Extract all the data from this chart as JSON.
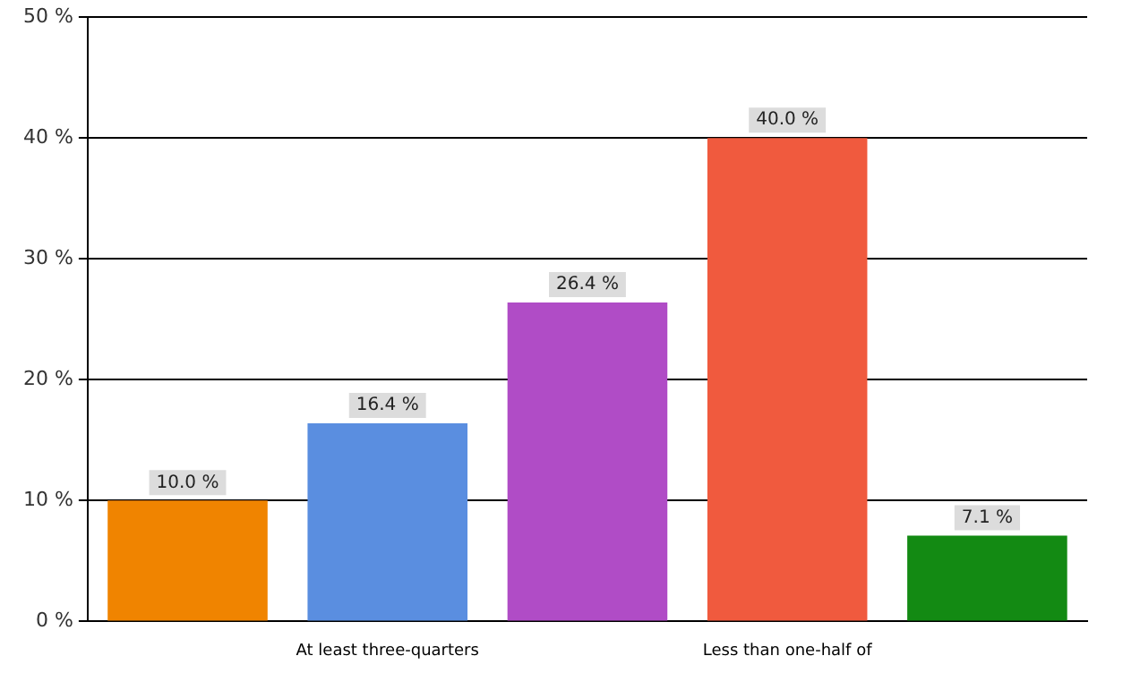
{
  "chart_data": {
    "type": "bar",
    "categories": [
      null,
      "At least three-quarters",
      null,
      "Less than one-half of",
      null
    ],
    "values": [
      10.0,
      16.4,
      26.4,
      40.0,
      7.1
    ],
    "colors": [
      "#f08400",
      "#5a8ee0",
      "#b04cc6",
      "#f05a3e",
      "#138a13"
    ],
    "value_labels": [
      "10.0 %",
      "16.4 %",
      "26.4 %",
      "40.0 %",
      "7.1 %"
    ],
    "ylim": [
      0,
      50
    ],
    "yticks": [
      {
        "value": 0,
        "label": "0 %"
      },
      {
        "value": 10,
        "label": "10 %"
      },
      {
        "value": 20,
        "label": "20 %"
      },
      {
        "value": 30,
        "label": "30 %"
      },
      {
        "value": 40,
        "label": "40 %"
      },
      {
        "value": 50,
        "label": "50 %"
      }
    ],
    "grid": "y",
    "legend": false
  }
}
